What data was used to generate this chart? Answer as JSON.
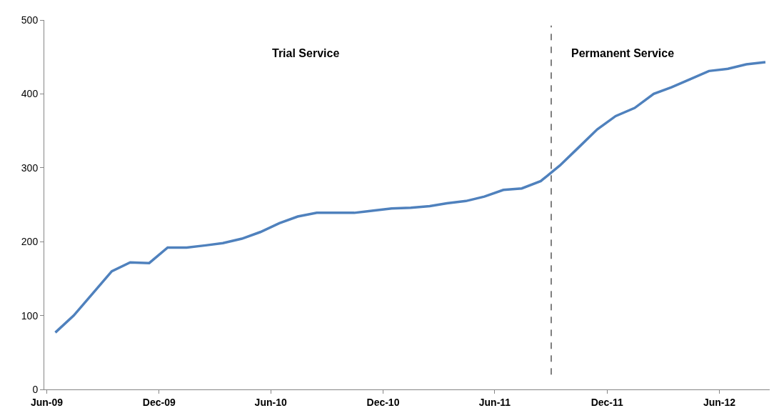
{
  "chart_data": {
    "type": "line",
    "x": [
      "2009-06-15",
      "2009-07-15",
      "2009-08-15",
      "2009-09-15",
      "2009-10-15",
      "2009-11-15",
      "2009-12-15",
      "2010-01-15",
      "2010-02-15",
      "2010-03-15",
      "2010-04-15",
      "2010-05-15",
      "2010-06-15",
      "2010-07-15",
      "2010-08-15",
      "2010-09-15",
      "2010-10-15",
      "2010-11-15",
      "2010-12-15",
      "2011-01-15",
      "2011-02-15",
      "2011-03-15",
      "2011-04-15",
      "2011-05-15",
      "2011-06-15",
      "2011-07-15",
      "2011-08-15",
      "2011-09-15",
      "2011-10-15",
      "2011-11-15",
      "2011-12-15",
      "2012-01-15",
      "2012-02-15",
      "2012-03-15",
      "2012-04-15",
      "2012-05-15",
      "2012-06-15",
      "2012-07-15",
      "2012-08-15"
    ],
    "series": [
      {
        "color": "#4f81bd",
        "values": [
          77,
          100,
          130,
          160,
          172,
          171,
          192,
          192,
          195,
          198,
          204,
          213,
          225,
          234,
          239,
          239,
          239,
          242,
          245,
          246,
          248,
          252,
          255,
          261,
          270,
          272,
          282,
          303,
          327,
          352,
          370,
          381,
          400,
          409,
          420,
          431,
          434,
          440,
          443
        ]
      }
    ],
    "xlim": [
      "2009-05-28",
      "2012-08-22"
    ],
    "xticks": [
      {
        "value": "2009-06-01",
        "label": "Jun-09"
      },
      {
        "value": "2009-12-01",
        "label": "Dec-09"
      },
      {
        "value": "2010-06-01",
        "label": "Jun-10"
      },
      {
        "value": "2010-12-01",
        "label": "Dec-10"
      },
      {
        "value": "2011-06-01",
        "label": "Jun-11"
      },
      {
        "value": "2011-12-01",
        "label": "Dec-11"
      },
      {
        "value": "2012-06-01",
        "label": "Jun-12"
      }
    ],
    "ylim": [
      0,
      500
    ],
    "yticks": [
      0,
      100,
      200,
      300,
      400,
      500
    ],
    "ref_lines": [
      {
        "axis": "x",
        "value": "2011-09-01",
        "color": "#000000",
        "line_style": "dashed"
      }
    ],
    "annotations": [
      "Trial Service",
      "Permanent Service"
    ],
    "legend": false,
    "marker": "none",
    "line_style": "solid"
  }
}
